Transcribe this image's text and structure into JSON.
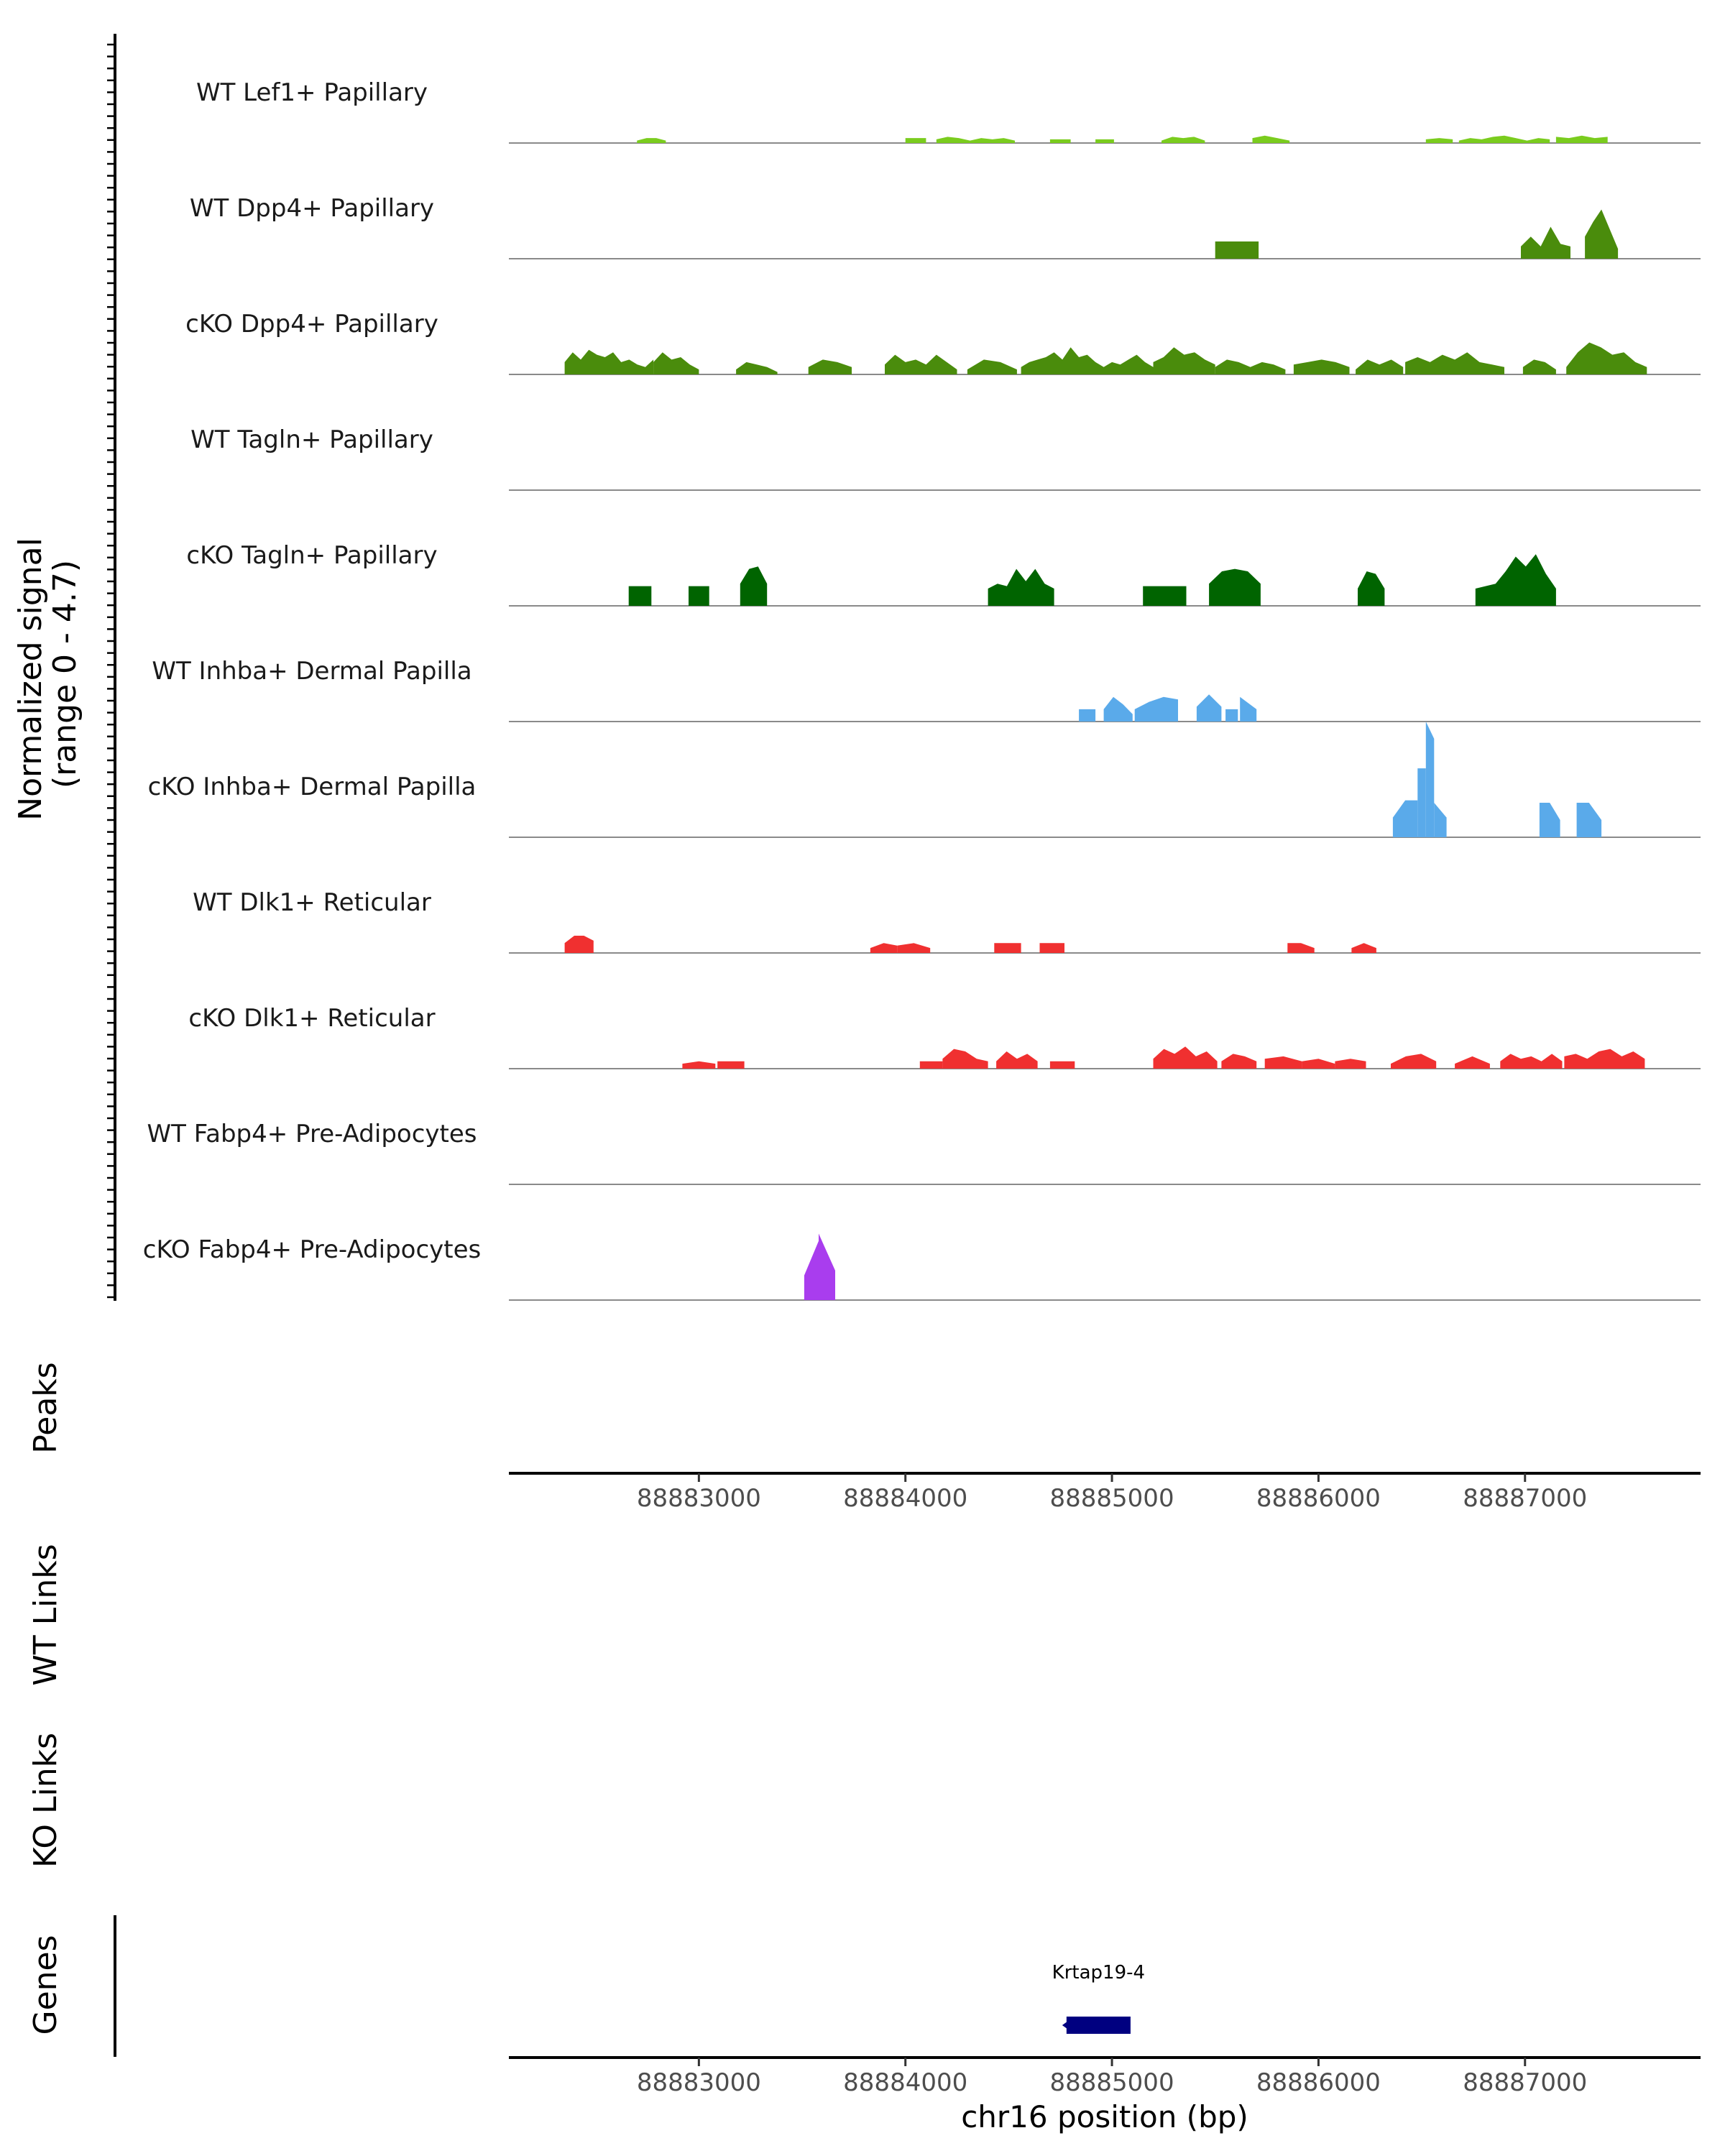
{
  "chart_data": {
    "type": "area",
    "title": "",
    "chromosome": "chr16",
    "xlabel": "chr16 position (bp)",
    "xlim": [
      88882080,
      88887850
    ],
    "x_ticks": [
      88883000,
      88884000,
      88885000,
      88886000,
      88887000
    ],
    "coverage_ylabel": "Normalized signal\n(range 0 - 4.7)",
    "ylim": [
      0,
      4.7
    ],
    "peaks_label": "Peaks",
    "wt_links_label": "WT Links",
    "ko_links_label": "KO Links",
    "genes_label": "Genes",
    "series": [
      {
        "name": "WT Lef1+ Papillary",
        "color": "#7ACC1E",
        "segments": [
          {
            "start": 88882700,
            "end": 88882840,
            "values": [
              0.1,
              0.2,
              0.2,
              0.1
            ]
          },
          {
            "start": 88884000,
            "end": 88884100,
            "values": [
              0.2,
              0.2,
              0.2
            ]
          },
          {
            "start": 88884150,
            "end": 88884530,
            "values": [
              0.15,
              0.25,
              0.2,
              0.1,
              0.2,
              0.15,
              0.2,
              0.1
            ]
          },
          {
            "start": 88884700,
            "end": 88884800,
            "values": [
              0.15,
              0.15
            ]
          },
          {
            "start": 88884920,
            "end": 88885010,
            "values": [
              0.15,
              0.15
            ]
          },
          {
            "start": 88885240,
            "end": 88885450,
            "values": [
              0.1,
              0.25,
              0.2,
              0.25,
              0.1
            ]
          },
          {
            "start": 88885680,
            "end": 88885860,
            "values": [
              0.2,
              0.3,
              0.2,
              0.1
            ]
          },
          {
            "start": 88886520,
            "end": 88886650,
            "values": [
              0.15,
              0.2,
              0.15
            ]
          },
          {
            "start": 88886680,
            "end": 88887120,
            "values": [
              0.1,
              0.2,
              0.15,
              0.25,
              0.3,
              0.2,
              0.1,
              0.2,
              0.15
            ]
          },
          {
            "start": 88887150,
            "end": 88887400,
            "values": [
              0.25,
              0.2,
              0.3,
              0.2,
              0.25
            ]
          }
        ]
      },
      {
        "name": "WT Dpp4+ Papillary",
        "color": "#4A8C0C",
        "segments": [
          {
            "start": 88885500,
            "end": 88885710,
            "values": [
              0.7,
              0.7,
              0.7
            ]
          },
          {
            "start": 88886980,
            "end": 88887220,
            "values": [
              0.5,
              0.9,
              0.5,
              1.3,
              0.6,
              0.5
            ]
          },
          {
            "start": 88887290,
            "end": 88887450,
            "values": [
              0.9,
              1.5,
              2.0,
              1.2,
              0.4
            ]
          }
        ]
      },
      {
        "name": "cKO Dpp4+ Papillary",
        "color": "#4A8C0C",
        "segments": [
          {
            "start": 88882350,
            "end": 88882780,
            "values": [
              0.5,
              0.9,
              0.6,
              1.0,
              0.8,
              0.7,
              0.9,
              0.5,
              0.6,
              0.4,
              0.3,
              0.6
            ]
          },
          {
            "start": 88882780,
            "end": 88883000,
            "values": [
              0.5,
              0.9,
              0.6,
              0.7,
              0.4,
              0.2
            ]
          },
          {
            "start": 88883180,
            "end": 88883380,
            "values": [
              0.2,
              0.5,
              0.4,
              0.3,
              0.1
            ]
          },
          {
            "start": 88883530,
            "end": 88883740,
            "values": [
              0.3,
              0.6,
              0.5,
              0.3
            ]
          },
          {
            "start": 88883900,
            "end": 88884250,
            "values": [
              0.4,
              0.8,
              0.5,
              0.6,
              0.4,
              0.8,
              0.5,
              0.2
            ]
          },
          {
            "start": 88884300,
            "end": 88884540,
            "values": [
              0.2,
              0.6,
              0.5,
              0.2
            ]
          },
          {
            "start": 88884560,
            "end": 88885200,
            "values": [
              0.3,
              0.5,
              0.6,
              0.7,
              0.9,
              0.6,
              1.1,
              0.7,
              0.8,
              0.5,
              0.3,
              0.5,
              0.4,
              0.6,
              0.8,
              0.5,
              0.3
            ]
          },
          {
            "start": 88885200,
            "end": 88885500,
            "values": [
              0.5,
              0.7,
              1.1,
              0.8,
              0.9,
              0.6,
              0.4
            ]
          },
          {
            "start": 88885500,
            "end": 88885840,
            "values": [
              0.3,
              0.6,
              0.5,
              0.3,
              0.5,
              0.4,
              0.2
            ]
          },
          {
            "start": 88885880,
            "end": 88886150,
            "values": [
              0.4,
              0.5,
              0.6,
              0.5,
              0.3
            ]
          },
          {
            "start": 88886180,
            "end": 88886410,
            "values": [
              0.2,
              0.6,
              0.4,
              0.6,
              0.3
            ]
          },
          {
            "start": 88886420,
            "end": 88886900,
            "values": [
              0.5,
              0.7,
              0.5,
              0.8,
              0.6,
              0.9,
              0.5,
              0.4,
              0.3
            ]
          },
          {
            "start": 88886990,
            "end": 88887150,
            "values": [
              0.3,
              0.6,
              0.5,
              0.2
            ]
          },
          {
            "start": 88887200,
            "end": 88887590,
            "values": [
              0.3,
              0.9,
              1.3,
              1.1,
              0.8,
              0.9,
              0.5,
              0.3
            ]
          }
        ]
      },
      {
        "name": "WT Tagln+ Papillary",
        "color": "#006400",
        "segments": []
      },
      {
        "name": "cKO Tagln+ Papillary",
        "color": "#006400",
        "segments": [
          {
            "start": 88882660,
            "end": 88882770,
            "values": [
              0.8,
              0.8,
              0.8
            ]
          },
          {
            "start": 88882950,
            "end": 88883050,
            "values": [
              0.8,
              0.8
            ]
          },
          {
            "start": 88883200,
            "end": 88883330,
            "values": [
              0.9,
              1.5,
              1.6,
              0.9
            ]
          },
          {
            "start": 88884400,
            "end": 88884720,
            "values": [
              0.7,
              0.9,
              0.8,
              1.5,
              1.0,
              1.5,
              0.9,
              0.7
            ]
          },
          {
            "start": 88885150,
            "end": 88885360,
            "values": [
              0.8,
              0.8,
              0.8
            ]
          },
          {
            "start": 88885470,
            "end": 88885720,
            "values": [
              0.9,
              1.4,
              1.5,
              1.4,
              0.9
            ]
          },
          {
            "start": 88886190,
            "end": 88886320,
            "values": [
              0.7,
              1.4,
              1.3,
              0.7
            ]
          },
          {
            "start": 88886760,
            "end": 88887150,
            "values": [
              0.7,
              0.8,
              0.9,
              1.4,
              2.0,
              1.6,
              2.1,
              1.3,
              0.7
            ]
          }
        ]
      },
      {
        "name": "WT Inhba+ Dermal Papilla",
        "color": "#5AAAEA",
        "segments": [
          {
            "start": 88884840,
            "end": 88884920,
            "values": [
              0.5,
              0.5
            ]
          },
          {
            "start": 88884960,
            "end": 88885100,
            "values": [
              0.5,
              1.0,
              0.7,
              0.3
            ]
          },
          {
            "start": 88885110,
            "end": 88885320,
            "values": [
              0.5,
              0.8,
              1.0,
              0.9
            ]
          },
          {
            "start": 88885410,
            "end": 88885530,
            "values": [
              0.6,
              1.1,
              0.6
            ]
          },
          {
            "start": 88885550,
            "end": 88885610,
            "values": [
              0.5,
              0.5
            ]
          },
          {
            "start": 88885620,
            "end": 88885700,
            "values": [
              1.0,
              0.5
            ]
          }
        ]
      },
      {
        "name": "cKO Inhba+ Dermal Papilla",
        "color": "#5AAAEA",
        "segments": [
          {
            "start": 88886360,
            "end": 88886480,
            "values": [
              0.8,
              1.5,
              1.5
            ]
          },
          {
            "start": 88886480,
            "end": 88886520,
            "values": [
              2.8,
              2.8
            ]
          },
          {
            "start": 88886520,
            "end": 88886560,
            "values": [
              4.7,
              4.0
            ]
          },
          {
            "start": 88886560,
            "end": 88886620,
            "values": [
              1.4,
              0.8
            ]
          },
          {
            "start": 88887070,
            "end": 88887170,
            "values": [
              1.4,
              1.4,
              0.7
            ]
          },
          {
            "start": 88887250,
            "end": 88887370,
            "values": [
              1.4,
              1.4,
              0.7
            ]
          }
        ]
      },
      {
        "name": "WT Dlk1+ Reticular",
        "color": "#F03030",
        "segments": [
          {
            "start": 88882350,
            "end": 88882490,
            "values": [
              0.4,
              0.7,
              0.7,
              0.5
            ]
          },
          {
            "start": 88883830,
            "end": 88883960,
            "values": [
              0.2,
              0.4,
              0.3
            ]
          },
          {
            "start": 88883960,
            "end": 88884120,
            "values": [
              0.3,
              0.4,
              0.2
            ]
          },
          {
            "start": 88884430,
            "end": 88884560,
            "values": [
              0.4,
              0.4
            ]
          },
          {
            "start": 88884650,
            "end": 88884770,
            "values": [
              0.4,
              0.4
            ]
          },
          {
            "start": 88885850,
            "end": 88885980,
            "values": [
              0.4,
              0.4,
              0.2
            ]
          },
          {
            "start": 88886160,
            "end": 88886280,
            "values": [
              0.2,
              0.4,
              0.2
            ]
          }
        ]
      },
      {
        "name": "cKO Dlk1+ Reticular",
        "color": "#F03030",
        "segments": [
          {
            "start": 88882920,
            "end": 88883080,
            "values": [
              0.2,
              0.3,
              0.2
            ]
          },
          {
            "start": 88883090,
            "end": 88883220,
            "values": [
              0.3,
              0.3
            ]
          },
          {
            "start": 88884070,
            "end": 88884180,
            "values": [
              0.3,
              0.3
            ]
          },
          {
            "start": 88884180,
            "end": 88884400,
            "values": [
              0.4,
              0.8,
              0.7,
              0.4,
              0.3
            ]
          },
          {
            "start": 88884440,
            "end": 88884640,
            "values": [
              0.3,
              0.7,
              0.4,
              0.6,
              0.3
            ]
          },
          {
            "start": 88884700,
            "end": 88884820,
            "values": [
              0.3,
              0.3
            ]
          },
          {
            "start": 88885200,
            "end": 88885510,
            "values": [
              0.4,
              0.8,
              0.6,
              0.9,
              0.5,
              0.7,
              0.3
            ]
          },
          {
            "start": 88885530,
            "end": 88885700,
            "values": [
              0.3,
              0.6,
              0.5,
              0.3
            ]
          },
          {
            "start": 88885740,
            "end": 88885920,
            "values": [
              0.4,
              0.5,
              0.3
            ]
          },
          {
            "start": 88885920,
            "end": 88886080,
            "values": [
              0.3,
              0.4,
              0.2
            ]
          },
          {
            "start": 88886080,
            "end": 88886230,
            "values": [
              0.3,
              0.4,
              0.3
            ]
          },
          {
            "start": 88886350,
            "end": 88886570,
            "values": [
              0.2,
              0.5,
              0.6,
              0.3
            ]
          },
          {
            "start": 88886660,
            "end": 88886830,
            "values": [
              0.2,
              0.5,
              0.2
            ]
          },
          {
            "start": 88886880,
            "end": 88887180,
            "values": [
              0.3,
              0.6,
              0.4,
              0.5,
              0.3,
              0.6,
              0.3
            ]
          },
          {
            "start": 88887190,
            "end": 88887580,
            "values": [
              0.5,
              0.6,
              0.4,
              0.7,
              0.8,
              0.5,
              0.7,
              0.4
            ]
          }
        ]
      },
      {
        "name": "WT Fabp4+ Pre-Adipocytes",
        "color": "#A93DEE",
        "segments": []
      },
      {
        "name": "cKO Fabp4+ Pre-Adipocytes",
        "color": "#A93DEE",
        "segments": [
          {
            "start": 88883510,
            "end": 88883580,
            "values": [
              1.0,
              2.4
            ]
          },
          {
            "start": 88883580,
            "end": 88883660,
            "values": [
              2.7,
              1.2
            ]
          }
        ]
      }
    ],
    "genes": [
      {
        "name": "Krtap19-4",
        "start": 88884780,
        "end": 88885090,
        "strand": "-",
        "color": "#000080"
      }
    ]
  }
}
